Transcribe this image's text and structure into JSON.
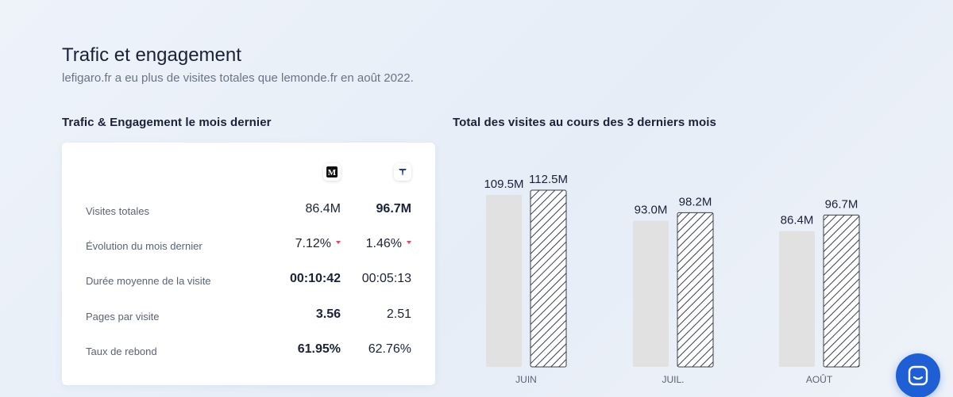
{
  "section": {
    "title": "Trafic et engagement",
    "subtitle": "lefigaro.fr a eu plus de visites totales que lemonde.fr en août 2022."
  },
  "left_panel": {
    "heading": "Trafic & Engagement le mois dernier",
    "logos": [
      {
        "icon": "lemonde-logo-icon",
        "glyph": "M"
      },
      {
        "icon": "lefigaro-logo-icon",
        "glyph": "F"
      }
    ],
    "metrics": [
      {
        "label": "Visites totales",
        "a": "86.4M",
        "b": "96.7M",
        "bold": "b"
      },
      {
        "label": "Évolution du mois dernier",
        "a": "7.12%",
        "b": "1.46%",
        "bold": "",
        "trend": "down"
      },
      {
        "label": "Durée moyenne de la visite",
        "a": "00:10:42",
        "b": "00:05:13",
        "bold": "a"
      },
      {
        "label": "Pages par visite",
        "a": "3.56",
        "b": "2.51",
        "bold": "a"
      },
      {
        "label": "Taux de rebond",
        "a": "61.95%",
        "b": "62.76%",
        "bold": "a"
      }
    ]
  },
  "right_panel": {
    "heading": "Total des visites au cours des 3 derniers mois"
  },
  "chart_data": {
    "type": "bar",
    "title": "Total des visites au cours des 3 derniers mois",
    "categories": [
      "JUIN",
      "JUIL.",
      "AOÛT"
    ],
    "unit": "M",
    "series": [
      {
        "name": "lemonde.fr",
        "values": [
          109.5,
          93.0,
          86.4
        ],
        "labels": [
          "109.5M",
          "93.0M",
          "86.4M"
        ],
        "style": "solid",
        "color": "#e1e1e1"
      },
      {
        "name": "lefigaro.fr",
        "values": [
          112.5,
          98.2,
          96.7
        ],
        "labels": [
          "112.5M",
          "98.2M",
          "96.7M"
        ],
        "style": "hatched",
        "color": "#3a3f4a"
      }
    ],
    "ylim": [
      0,
      112.5
    ]
  },
  "chat_button": {
    "icon": "chat-icon"
  }
}
